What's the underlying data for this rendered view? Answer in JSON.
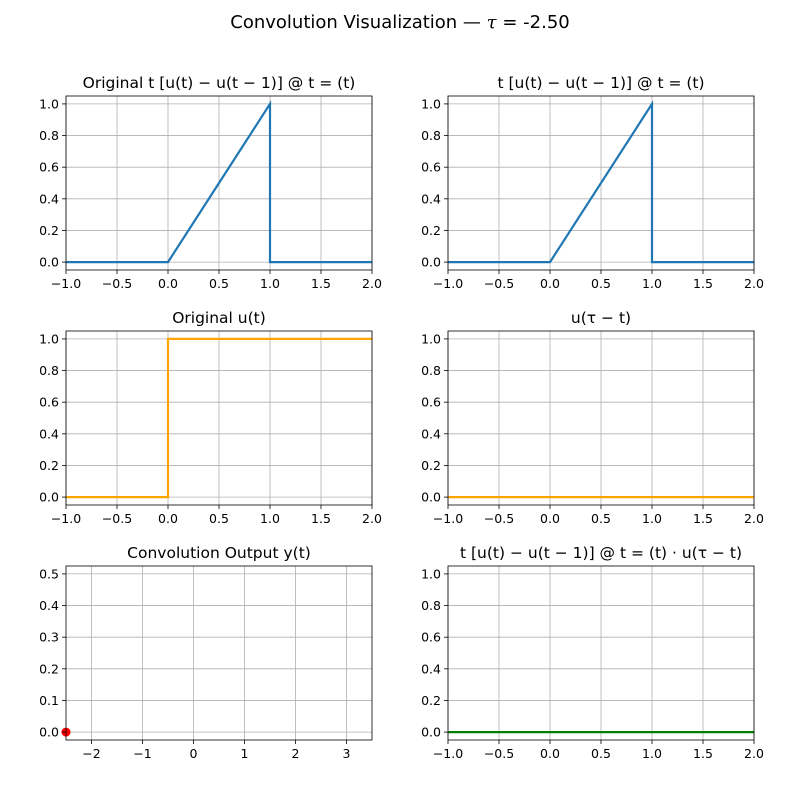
{
  "figure": {
    "title_prefix": "Convolution Visualization — ",
    "title_symbol": "τ",
    "title_suffix": " = -2.50"
  },
  "chart_data": [
    {
      "id": "p1",
      "type": "line",
      "title": "Original t [u(t) − u(t − 1)] @ t = (t)",
      "xlim": [
        -1.0,
        2.0
      ],
      "ylim": [
        -0.05,
        1.05
      ],
      "xticks": [
        -1.0,
        -0.5,
        0.0,
        0.5,
        1.0,
        1.5,
        2.0
      ],
      "xtick_labels": [
        "−1.0",
        "−0.5",
        "0.0",
        "0.5",
        "1.0",
        "1.5",
        "2.0"
      ],
      "yticks": [
        0.0,
        0.2,
        0.4,
        0.6,
        0.8,
        1.0
      ],
      "ytick_labels": [
        "0.0",
        "0.2",
        "0.4",
        "0.6",
        "0.8",
        "1.0"
      ],
      "grid": true,
      "series": [
        {
          "color": "#1f77b4",
          "x": [
            -1.0,
            0.0,
            1.0,
            1.0,
            2.0
          ],
          "y": [
            0.0,
            0.0,
            1.0,
            0.0,
            0.0
          ]
        }
      ]
    },
    {
      "id": "p2",
      "type": "line",
      "title": "t [u(t) − u(t − 1)] @ t = (t)",
      "xlim": [
        -1.0,
        2.0
      ],
      "ylim": [
        -0.05,
        1.05
      ],
      "xticks": [
        -1.0,
        -0.5,
        0.0,
        0.5,
        1.0,
        1.5,
        2.0
      ],
      "xtick_labels": [
        "−1.0",
        "−0.5",
        "0.0",
        "0.5",
        "1.0",
        "1.5",
        "2.0"
      ],
      "yticks": [
        0.0,
        0.2,
        0.4,
        0.6,
        0.8,
        1.0
      ],
      "ytick_labels": [
        "0.0",
        "0.2",
        "0.4",
        "0.6",
        "0.8",
        "1.0"
      ],
      "grid": true,
      "series": [
        {
          "color": "#1f77b4",
          "x": [
            -1.0,
            0.0,
            1.0,
            1.0,
            2.0
          ],
          "y": [
            0.0,
            0.0,
            1.0,
            0.0,
            0.0
          ]
        }
      ]
    },
    {
      "id": "p3",
      "type": "line",
      "title": "Original u(t)",
      "xlim": [
        -1.0,
        2.0
      ],
      "ylim": [
        -0.05,
        1.05
      ],
      "xticks": [
        -1.0,
        -0.5,
        0.0,
        0.5,
        1.0,
        1.5,
        2.0
      ],
      "xtick_labels": [
        "−1.0",
        "−0.5",
        "0.0",
        "0.5",
        "1.0",
        "1.5",
        "2.0"
      ],
      "yticks": [
        0.0,
        0.2,
        0.4,
        0.6,
        0.8,
        1.0
      ],
      "ytick_labels": [
        "0.0",
        "0.2",
        "0.4",
        "0.6",
        "0.8",
        "1.0"
      ],
      "grid": true,
      "series": [
        {
          "color": "#ffa500",
          "x": [
            -1.0,
            0.0,
            0.0,
            2.0
          ],
          "y": [
            0.0,
            0.0,
            1.0,
            1.0
          ]
        }
      ]
    },
    {
      "id": "p4",
      "type": "line",
      "title": "u(τ − t)",
      "xlim": [
        -1.0,
        2.0
      ],
      "ylim": [
        -0.05,
        1.05
      ],
      "xticks": [
        -1.0,
        -0.5,
        0.0,
        0.5,
        1.0,
        1.5,
        2.0
      ],
      "xtick_labels": [
        "−1.0",
        "−0.5",
        "0.0",
        "0.5",
        "1.0",
        "1.5",
        "2.0"
      ],
      "yticks": [
        0.0,
        0.2,
        0.4,
        0.6,
        0.8,
        1.0
      ],
      "ytick_labels": [
        "0.0",
        "0.2",
        "0.4",
        "0.6",
        "0.8",
        "1.0"
      ],
      "grid": true,
      "series": [
        {
          "color": "#ffa500",
          "x": [
            -1.0,
            2.0
          ],
          "y": [
            0.0,
            0.0
          ]
        }
      ]
    },
    {
      "id": "p5",
      "type": "scatter",
      "title": "Convolution Output y(t)",
      "xlim": [
        -2.5,
        3.5
      ],
      "ylim": [
        -0.025,
        0.525
      ],
      "xticks": [
        -2,
        -1,
        0,
        1,
        2,
        3
      ],
      "xtick_labels": [
        "−2",
        "−1",
        "0",
        "1",
        "2",
        "3"
      ],
      "yticks": [
        0.0,
        0.1,
        0.2,
        0.3,
        0.4,
        0.5
      ],
      "ytick_labels": [
        "0.0",
        "0.1",
        "0.2",
        "0.3",
        "0.4",
        "0.5"
      ],
      "grid": true,
      "points": [
        {
          "color": "#ff0000",
          "x": -2.5,
          "y": 0.0
        }
      ]
    },
    {
      "id": "p6",
      "type": "line",
      "title": "t [u(t) − u(t − 1)] @ t = (t) · u(τ − t)",
      "xlim": [
        -1.0,
        2.0
      ],
      "ylim": [
        -0.05,
        1.05
      ],
      "xticks": [
        -1.0,
        -0.5,
        0.0,
        0.5,
        1.0,
        1.5,
        2.0
      ],
      "xtick_labels": [
        "−1.0",
        "−0.5",
        "0.0",
        "0.5",
        "1.0",
        "1.5",
        "2.0"
      ],
      "yticks": [
        0.0,
        0.2,
        0.4,
        0.6,
        0.8,
        1.0
      ],
      "ytick_labels": [
        "0.0",
        "0.2",
        "0.4",
        "0.6",
        "0.8",
        "1.0"
      ],
      "grid": true,
      "series": [
        {
          "color": "#008000",
          "x": [
            -1.0,
            2.0
          ],
          "y": [
            0.0,
            0.0
          ]
        }
      ]
    }
  ]
}
